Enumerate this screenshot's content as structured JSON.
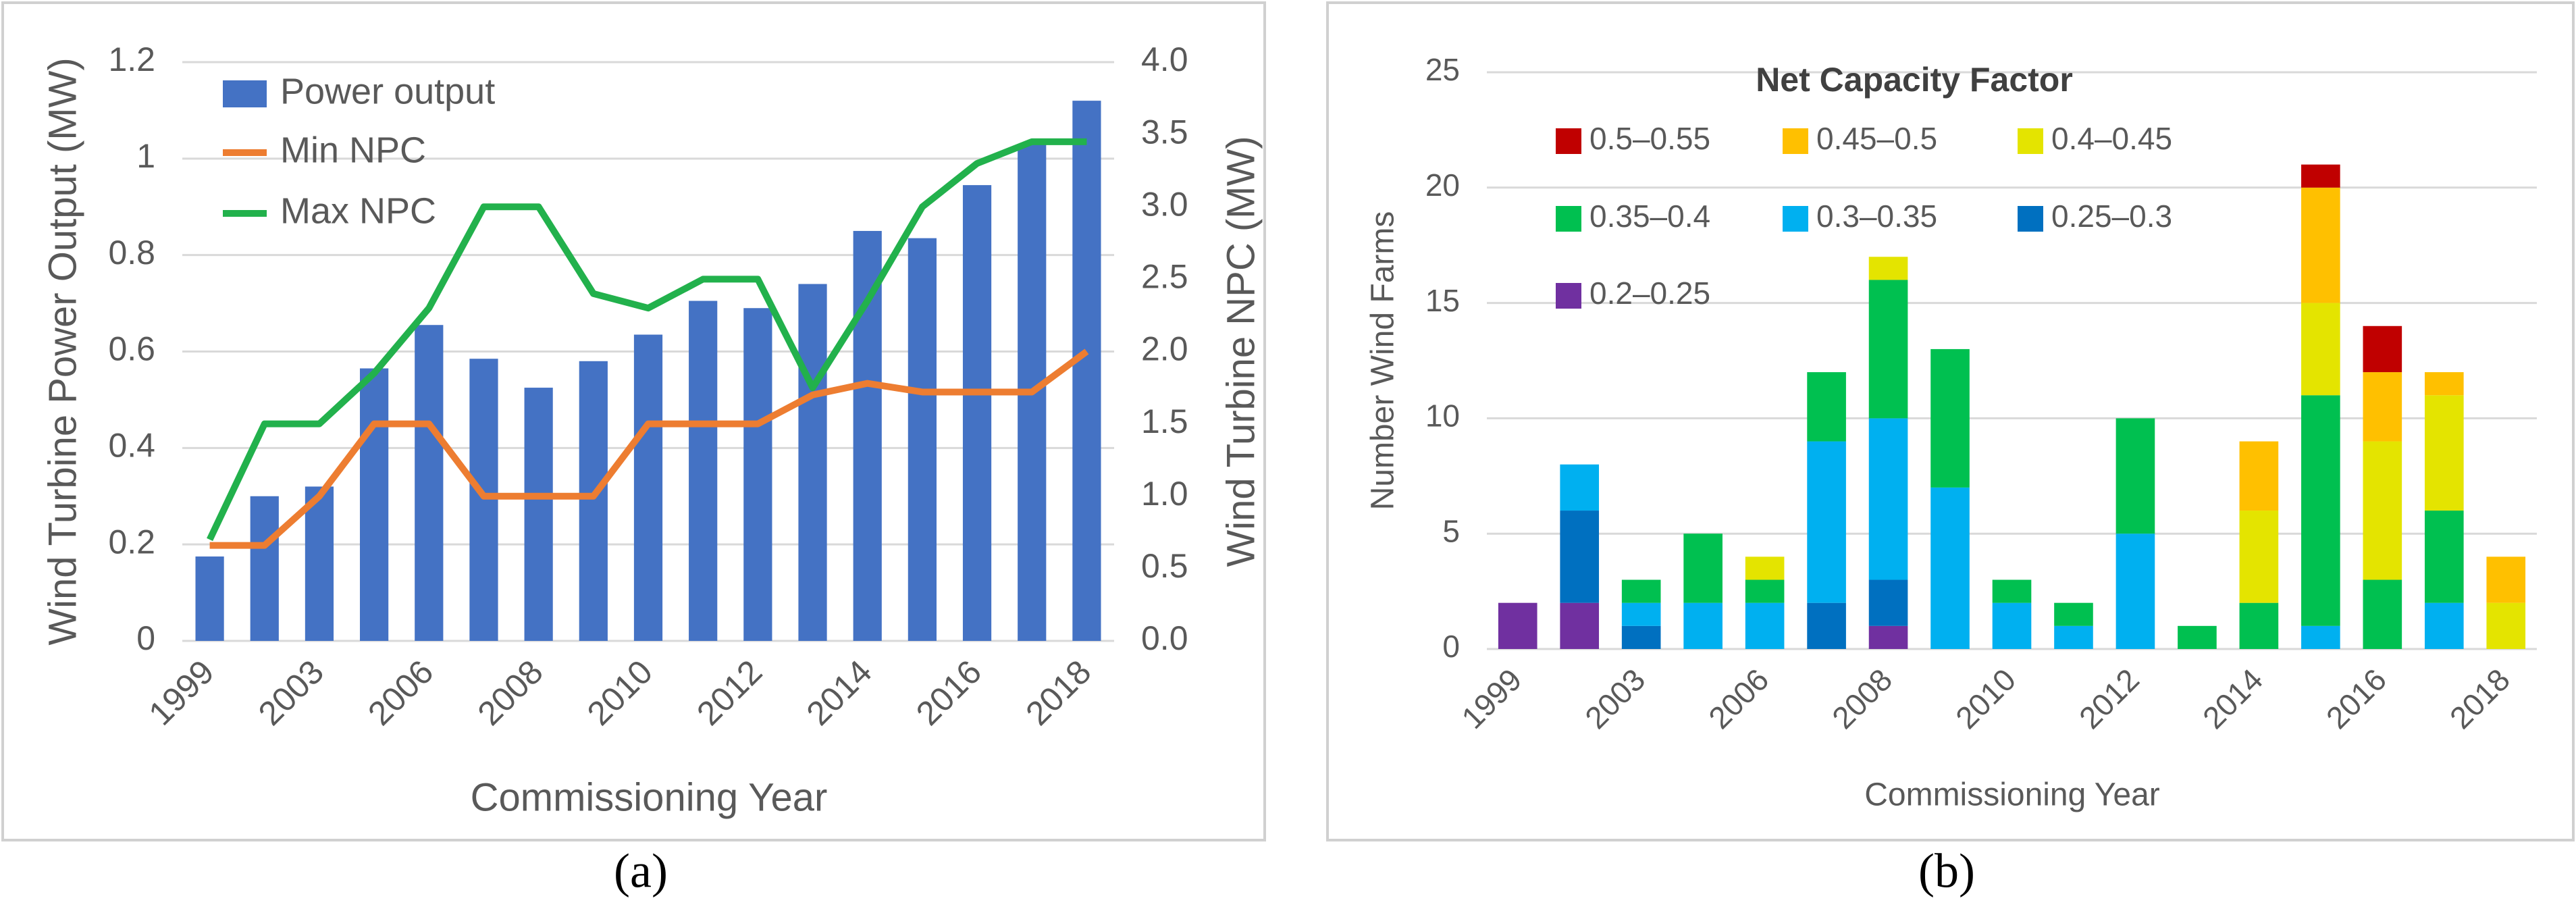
{
  "chart_data": [
    {
      "type": "bar",
      "caption": "(a)",
      "categories": [
        "1999",
        null,
        "2003",
        null,
        "2006",
        null,
        "2008",
        null,
        "2010",
        null,
        "2012",
        null,
        "2014",
        null,
        "2016",
        null,
        "2018"
      ],
      "x_label": "Commissioning Year",
      "y_label": "Wind Turbine Power Output (MW)",
      "y2_label": "Wind Turbine NPC (MW)",
      "ylim": [
        0,
        1.2
      ],
      "yticks": [
        0,
        0.2,
        0.4,
        0.6,
        0.8,
        1,
        1.2
      ],
      "y2lim": [
        0,
        4
      ],
      "y2ticks": [
        {
          "value": 0,
          "label": "0.0"
        },
        {
          "value": 0.5,
          "label": "0.5"
        },
        {
          "value": 1,
          "label": "1.0"
        },
        {
          "value": 1.5,
          "label": "1.5"
        },
        {
          "value": 2,
          "label": "2.0"
        },
        {
          "value": 2.5,
          "label": "2.5"
        },
        {
          "value": 3,
          "label": "3.0"
        },
        {
          "value": 3.5,
          "label": "3.5"
        },
        {
          "value": 4,
          "label": "4.0"
        }
      ],
      "grid": true,
      "legend": "top-left",
      "series": [
        {
          "name": "Power output",
          "type": "bar",
          "color": "#4472c4",
          "values": [
            0.175,
            0.3,
            0.32,
            0.565,
            0.655,
            0.585,
            0.525,
            0.58,
            0.635,
            0.705,
            0.69,
            0.74,
            0.85,
            0.835,
            0.945,
            1.03,
            1.12
          ]
        },
        {
          "name": "Min NPC",
          "type": "line",
          "axis": "y2",
          "color": "#ed7d31",
          "values": [
            0.66,
            0.66,
            1.0,
            1.5,
            1.5,
            1.0,
            1.0,
            1.0,
            1.5,
            1.5,
            1.5,
            1.7,
            1.78,
            1.72,
            1.72,
            1.72,
            2.0
          ]
        },
        {
          "name": "Max NPC",
          "type": "line",
          "axis": "y2",
          "color": "#22b14c",
          "values": [
            0.7,
            1.5,
            1.5,
            1.85,
            2.3,
            3.0,
            3.0,
            2.4,
            2.3,
            2.5,
            2.5,
            1.75,
            2.35,
            3.0,
            3.3,
            3.45,
            3.45
          ]
        }
      ]
    },
    {
      "type": "stacked_bar",
      "caption": "(b)",
      "legend_title": "Net Capacity Factor",
      "categories": [
        "1999",
        null,
        "2003",
        null,
        "2006",
        null,
        "2008",
        null,
        "2010",
        null,
        "2012",
        null,
        "2014",
        null,
        "2016",
        null,
        "2018"
      ],
      "x_label": "Commissioning Year",
      "y_label": "Number Wind Farms",
      "ylim": [
        0,
        25
      ],
      "yticks": [
        0,
        5,
        10,
        15,
        20,
        25
      ],
      "grid": true,
      "legend": "top",
      "series": [
        {
          "name": "0.2–0.25",
          "color": "#7030a0",
          "values": [
            2,
            2,
            0,
            0,
            0,
            0,
            1,
            0,
            0,
            0,
            0,
            0,
            0,
            0,
            0,
            0,
            0
          ]
        },
        {
          "name": "0.25–0.3",
          "color": "#0070c0",
          "values": [
            0,
            4,
            1,
            0,
            0,
            2,
            2,
            0,
            0,
            0,
            0,
            0,
            0,
            0,
            0,
            0,
            0
          ]
        },
        {
          "name": "0.3–0.35",
          "color": "#00b0f0",
          "values": [
            0,
            2,
            1,
            2,
            2,
            7,
            7,
            7,
            2,
            1,
            5,
            0,
            0,
            1,
            0,
            2,
            0
          ]
        },
        {
          "name": "0.35–0.4",
          "color": "#00c050",
          "values": [
            0,
            0,
            1,
            3,
            1,
            3,
            6,
            6,
            1,
            1,
            5,
            1,
            2,
            10,
            3,
            4,
            0
          ]
        },
        {
          "name": "0.4–0.45",
          "color": "#e4e400",
          "values": [
            0,
            0,
            0,
            0,
            1,
            0,
            1,
            0,
            0,
            0,
            0,
            0,
            4,
            4,
            6,
            5,
            2
          ]
        },
        {
          "name": "0.45–0.5",
          "color": "#ffc000",
          "values": [
            0,
            0,
            0,
            0,
            0,
            0,
            0,
            0,
            0,
            0,
            0,
            0,
            3,
            5,
            3,
            1,
            2
          ]
        },
        {
          "name": "0.5–0.55",
          "color": "#c00000",
          "values": [
            0,
            0,
            0,
            0,
            0,
            0,
            0,
            0,
            0,
            0,
            0,
            0,
            0,
            1,
            2,
            0,
            0
          ]
        }
      ]
    }
  ]
}
